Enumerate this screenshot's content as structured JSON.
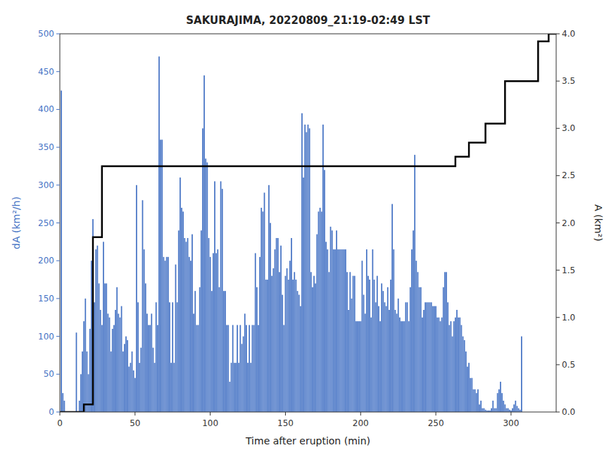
{
  "chart_data": {
    "type": "bar",
    "title": "SAKURAJIMA, 20220809_21:19-02:49 LST",
    "xlabel": "Time after eruption (min)",
    "ylabel": "dA (km²/h)",
    "y2label": "A (km²)",
    "xlim": [
      0,
      330
    ],
    "ylim": [
      0,
      500
    ],
    "y2lim": [
      0,
      4
    ],
    "xticks": [
      0,
      50,
      100,
      150,
      200,
      250,
      300
    ],
    "yticks": [
      0,
      50,
      100,
      150,
      200,
      250,
      300,
      350,
      400,
      450,
      500
    ],
    "y2ticks": [
      {
        "value": 0,
        "label": "0.0"
      },
      0.5,
      {
        "value": 1.0,
        "label": "1.0"
      },
      1.5,
      {
        "value": 2.0,
        "label": "2.0"
      },
      2.5,
      {
        "value": 3.0,
        "label": "3.0"
      },
      3.5,
      {
        "value": 4.0,
        "label": "4.0"
      }
    ],
    "grid": false,
    "series": [
      {
        "type": "bar",
        "color": "#4472C4",
        "values": [
          425,
          25,
          15,
          0,
          0,
          0,
          0,
          0,
          0,
          0,
          105,
          0,
          15,
          50,
          80,
          120,
          150,
          80,
          50,
          110,
          200,
          255,
          145,
          215,
          220,
          170,
          135,
          115,
          225,
          170,
          170,
          130,
          125,
          80,
          110,
          115,
          135,
          165,
          130,
          125,
          140,
          80,
          90,
          100,
          95,
          60,
          65,
          80,
          55,
          45,
          300,
          145,
          65,
          85,
          280,
          215,
          170,
          130,
          115,
          115,
          130,
          85,
          65,
          145,
          115,
          470,
          360,
          360,
          205,
          200,
          205,
          205,
          145,
          65,
          145,
          65,
          195,
          145,
          240,
          310,
          270,
          265,
          230,
          225,
          230,
          205,
          200,
          235,
          130,
          160,
          115,
          115,
          165,
          240,
          375,
          445,
          335,
          330,
          230,
          205,
          160,
          210,
          305,
          210,
          215,
          165,
          305,
          295,
          160,
          160,
          115,
          115,
          40,
          65,
          115,
          65,
          65,
          115,
          65,
          115,
          90,
          100,
          130,
          115,
          65,
          115,
          65,
          115,
          115,
          210,
          165,
          115,
          205,
          270,
          265,
          290,
          175,
          175,
          300,
          250,
          180,
          190,
          215,
          230,
          230,
          185,
          220,
          155,
          115,
          180,
          190,
          175,
          200,
          230,
          175,
          185,
          175,
          160,
          155,
          140,
          395,
          310,
          380,
          370,
          380,
          375,
          185,
          165,
          180,
          170,
          235,
          265,
          270,
          265,
          380,
          320,
          225,
          215,
          185,
          245,
          240,
          215,
          215,
          240,
          215,
          215,
          215,
          215,
          215,
          215,
          185,
          135,
          185,
          150,
          180,
          180,
          120,
          120,
          120,
          120,
          200,
          155,
          130,
          215,
          180,
          175,
          125,
          215,
          175,
          145,
          180,
          140,
          120,
          170,
          160,
          145,
          140,
          165,
          135,
          175,
          275,
          215,
          135,
          130,
          150,
          125,
          120,
          120,
          120,
          145,
          145,
          120,
          165,
          215,
          240,
          340,
          200,
          185,
          165,
          165,
          125,
          135,
          145,
          145,
          145,
          145,
          145,
          140,
          140,
          140,
          125,
          125,
          120,
          125,
          165,
          185,
          185,
          145,
          115,
          120,
          100,
          120,
          125,
          135,
          125,
          125,
          115,
          100,
          95,
          80,
          60,
          65,
          45,
          45,
          30,
          30,
          25,
          30,
          10,
          15,
          5,
          5,
          3,
          2,
          2,
          2,
          5,
          15,
          5,
          5,
          25,
          30,
          40,
          25,
          15,
          10,
          5,
          5,
          3,
          2,
          5,
          10,
          15,
          8,
          5,
          3,
          100,
          0,
          0,
          0,
          0,
          0,
          0,
          0,
          0,
          0,
          0,
          0,
          0,
          0,
          0,
          0,
          0
        ]
      },
      {
        "type": "step",
        "axis": "y2",
        "color": "#000000",
        "x": [
          0,
          12,
          16,
          22,
          28,
          255,
          263,
          272,
          283,
          296,
          318,
          325,
          330
        ],
        "values": [
          0,
          0,
          0.08,
          1.85,
          2.6,
          2.6,
          2.7,
          2.85,
          3.05,
          3.5,
          3.92,
          4.0,
          4.0
        ]
      }
    ]
  }
}
